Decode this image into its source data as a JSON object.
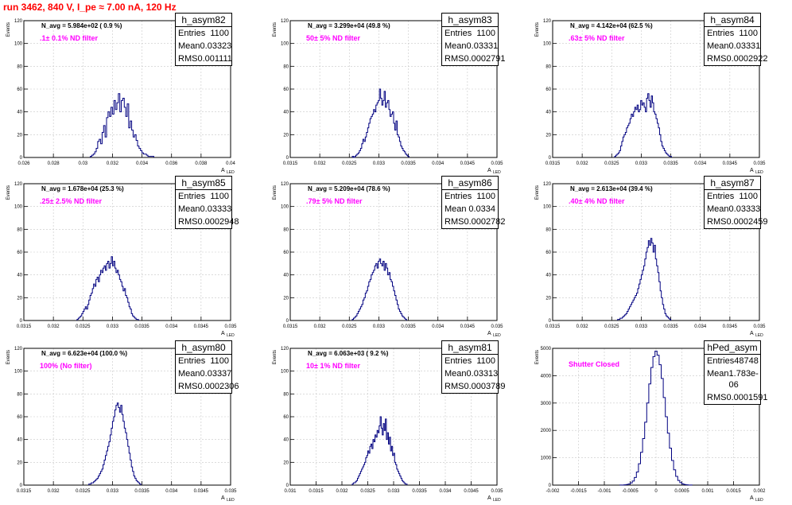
{
  "title": "run 3462,   840 V, I_pe ≈ 7.00 nA, 120 Hz",
  "colors": {
    "line": "#000080",
    "title": "#ff0000",
    "filter_text": "#ff00ff",
    "grid": "#c8c8c8"
  },
  "common": {
    "ylabel": "Events",
    "xlabel": "A",
    "xlabel_sub": "LED"
  },
  "chart_data": [
    {
      "type": "histogram",
      "name": "h_asym82",
      "stats": {
        "entries": "1100",
        "mean": "0.03323",
        "rms": "0.001111"
      },
      "n_avg_label": "N_avg = 5.984e+02 ( 0.9 %)",
      "filter_label": ".1± 0.1% ND filter",
      "xlim": [
        0.026,
        0.04
      ],
      "ylim": [
        0,
        120
      ],
      "xticks": [
        0.026,
        0.028,
        0.03,
        0.032,
        0.034,
        0.036,
        0.038,
        0.04
      ],
      "xtick_labels": [
        "0.026",
        "0.028",
        "0.03",
        "0.032",
        "0.034",
        "0.036",
        "0.038",
        "0.04"
      ],
      "yticks": [
        0,
        20,
        40,
        60,
        80,
        100,
        120
      ],
      "ytick_labels": [
        "0",
        "20",
        "40",
        "60",
        "80",
        "100",
        "120"
      ],
      "bins": {
        "start": 0.0305,
        "width": 0.0001,
        "counts": [
          1,
          2,
          3,
          5,
          8,
          14,
          16,
          12,
          22,
          28,
          18,
          35,
          40,
          36,
          44,
          38,
          50,
          42,
          48,
          56,
          40,
          50,
          52,
          44,
          36,
          47,
          26,
          32,
          24,
          18,
          20,
          15,
          10,
          8,
          6,
          4,
          3,
          3,
          2,
          1,
          1,
          1,
          1
        ]
      }
    },
    {
      "type": "histogram",
      "name": "h_asym83",
      "stats": {
        "entries": "1100",
        "mean": "0.03331",
        "rms": "0.0002791"
      },
      "n_avg_label": "N_avg = 3.299e+04 (49.8 %)",
      "filter_label": "50± 5% ND filter",
      "xlim": [
        0.0315,
        0.035
      ],
      "ylim": [
        0,
        120
      ],
      "xticks": [
        0.0315,
        0.032,
        0.0325,
        0.033,
        0.0335,
        0.034,
        0.0345,
        0.035
      ],
      "xtick_labels": [
        "0.0315",
        "0.032",
        "0.0325",
        "0.033",
        "0.0335",
        "0.034",
        "0.0345",
        "0.035"
      ],
      "yticks": [
        0,
        20,
        40,
        60,
        80,
        100,
        120
      ],
      "ytick_labels": [
        "0",
        "20",
        "40",
        "60",
        "80",
        "100",
        "120"
      ],
      "bins": {
        "start": 0.03255,
        "width": 2e-05,
        "counts": [
          1,
          0,
          1,
          2,
          3,
          4,
          6,
          8,
          12,
          16,
          14,
          18,
          22,
          26,
          30,
          34,
          36,
          38,
          42,
          40,
          46,
          48,
          50,
          60,
          52,
          46,
          50,
          58,
          44,
          48,
          50,
          42,
          36,
          38,
          40,
          30,
          24,
          32,
          20,
          18,
          14,
          10,
          8,
          6,
          5,
          3,
          2,
          1
        ]
      }
    },
    {
      "type": "histogram",
      "name": "h_asym84",
      "stats": {
        "entries": "1100",
        "mean": "0.03331",
        "rms": "0.0002922"
      },
      "n_avg_label": "N_avg = 4.142e+04 (62.5 %)",
      "filter_label": ".63± 5% ND filter",
      "xlim": [
        0.0315,
        0.035
      ],
      "ylim": [
        0,
        120
      ],
      "xticks": [
        0.0315,
        0.032,
        0.0325,
        0.033,
        0.0335,
        0.034,
        0.0345,
        0.035
      ],
      "xtick_labels": [
        "0.0315",
        "0.032",
        "0.0325",
        "0.033",
        "0.0335",
        "0.034",
        "0.0345",
        "0.035"
      ],
      "yticks": [
        0,
        20,
        40,
        60,
        80,
        100,
        120
      ],
      "ytick_labels": [
        "0",
        "20",
        "40",
        "60",
        "80",
        "100",
        "120"
      ],
      "bins": {
        "start": 0.03255,
        "width": 2e-05,
        "counts": [
          1,
          2,
          3,
          4,
          6,
          10,
          14,
          18,
          20,
          22,
          26,
          28,
          30,
          34,
          38,
          36,
          40,
          44,
          42,
          46,
          40,
          42,
          50,
          46,
          48,
          44,
          40,
          52,
          56,
          50,
          44,
          54,
          48,
          40,
          38,
          34,
          30,
          26,
          20,
          14,
          10,
          8,
          6,
          4,
          3,
          2,
          1,
          1
        ]
      }
    },
    {
      "type": "histogram",
      "name": "h_asym85",
      "stats": {
        "entries": "1100",
        "mean": "0.03333",
        "rms": "0.0002948"
      },
      "n_avg_label": "N_avg = 1.678e+04 (25.3 %)",
      "filter_label": ".25± 2.5% ND filter",
      "xlim": [
        0.0315,
        0.035
      ],
      "ylim": [
        0,
        120
      ],
      "xticks": [
        0.0315,
        0.032,
        0.0325,
        0.033,
        0.0335,
        0.034,
        0.0345,
        0.035
      ],
      "xtick_labels": [
        "0.0315",
        "0.032",
        "0.0325",
        "0.033",
        "0.0335",
        "0.034",
        "0.0345",
        "0.035"
      ],
      "yticks": [
        0,
        20,
        40,
        60,
        80,
        100,
        120
      ],
      "ytick_labels": [
        "0",
        "20",
        "40",
        "60",
        "80",
        "100",
        "120"
      ],
      "bins": {
        "start": 0.0324,
        "width": 2e-05,
        "counts": [
          1,
          2,
          3,
          4,
          6,
          8,
          10,
          12,
          10,
          14,
          18,
          22,
          24,
          28,
          32,
          30,
          36,
          38,
          34,
          40,
          44,
          42,
          46,
          48,
          44,
          50,
          52,
          46,
          50,
          56,
          48,
          52,
          46,
          42,
          44,
          40,
          36,
          34,
          30,
          26,
          28,
          22,
          20,
          16,
          12,
          10,
          6,
          4,
          3,
          2,
          1,
          1
        ]
      }
    },
    {
      "type": "histogram",
      "name": "h_asym86",
      "stats": {
        "entries": "1100",
        "mean": "0.0334",
        "rms": "0.0002782"
      },
      "n_avg_label": "N_avg = 5.209e+04 (78.6 %)",
      "filter_label": ".79± 5% ND filter",
      "xlim": [
        0.0315,
        0.035
      ],
      "ylim": [
        0,
        120
      ],
      "xticks": [
        0.0315,
        0.032,
        0.0325,
        0.033,
        0.0335,
        0.034,
        0.0345,
        0.035
      ],
      "xtick_labels": [
        "0.0315",
        "0.032",
        "0.0325",
        "0.033",
        "0.0335",
        "0.034",
        "0.0345",
        "0.035"
      ],
      "yticks": [
        0,
        20,
        40,
        60,
        80,
        100,
        120
      ],
      "ytick_labels": [
        "0",
        "20",
        "40",
        "60",
        "80",
        "100",
        "120"
      ],
      "bins": {
        "start": 0.03255,
        "width": 2e-05,
        "counts": [
          1,
          2,
          3,
          4,
          6,
          8,
          10,
          12,
          14,
          18,
          20,
          24,
          26,
          30,
          34,
          36,
          40,
          42,
          44,
          48,
          50,
          46,
          52,
          54,
          50,
          48,
          52,
          44,
          50,
          46,
          40,
          42,
          36,
          34,
          30,
          26,
          22,
          18,
          14,
          10,
          8,
          6,
          4,
          3,
          2,
          1
        ]
      }
    },
    {
      "type": "histogram",
      "name": "h_asym87",
      "stats": {
        "entries": "1100",
        "mean": "0.03333",
        "rms": "0.0002459"
      },
      "n_avg_label": "N_avg = 2.613e+04 (39.4 %)",
      "filter_label": ".40± 4% ND filter",
      "xlim": [
        0.0315,
        0.035
      ],
      "ylim": [
        0,
        120
      ],
      "xticks": [
        0.0315,
        0.032,
        0.0325,
        0.033,
        0.0335,
        0.034,
        0.0345,
        0.035
      ],
      "xtick_labels": [
        "0.0315",
        "0.032",
        "0.0325",
        "0.033",
        "0.0335",
        "0.034",
        "0.0345",
        "0.035"
      ],
      "yticks": [
        0,
        20,
        40,
        60,
        80,
        100,
        120
      ],
      "ytick_labels": [
        "0",
        "20",
        "40",
        "60",
        "80",
        "100",
        "120"
      ],
      "bins": {
        "start": 0.0326,
        "width": 2e-05,
        "counts": [
          1,
          1,
          2,
          2,
          3,
          4,
          5,
          6,
          8,
          10,
          12,
          14,
          16,
          18,
          20,
          22,
          24,
          28,
          32,
          36,
          40,
          44,
          48,
          54,
          60,
          64,
          70,
          66,
          72,
          68,
          60,
          66,
          54,
          48,
          42,
          34,
          26,
          20,
          14,
          10,
          6,
          4,
          3,
          2,
          1
        ]
      }
    },
    {
      "type": "histogram",
      "name": "h_asym80",
      "stats": {
        "entries": "1100",
        "mean": "0.03337",
        "rms": "0.0002306"
      },
      "n_avg_label": "N_avg = 6.623e+04 (100.0 %)",
      "filter_label": "100% (No filter)",
      "xlim": [
        0.0315,
        0.035
      ],
      "ylim": [
        0,
        120
      ],
      "xticks": [
        0.0315,
        0.032,
        0.0325,
        0.033,
        0.0335,
        0.034,
        0.0345,
        0.035
      ],
      "xtick_labels": [
        "0.0315",
        "0.032",
        "0.0325",
        "0.033",
        "0.0335",
        "0.034",
        "0.0345",
        "0.035"
      ],
      "yticks": [
        0,
        20,
        40,
        60,
        80,
        100,
        120
      ],
      "ytick_labels": [
        "0",
        "20",
        "40",
        "60",
        "80",
        "100",
        "120"
      ],
      "bins": {
        "start": 0.0326,
        "width": 2e-05,
        "counts": [
          1,
          1,
          2,
          2,
          3,
          4,
          5,
          6,
          8,
          10,
          12,
          14,
          18,
          22,
          26,
          30,
          34,
          38,
          44,
          50,
          56,
          60,
          66,
          70,
          72,
          68,
          64,
          70,
          62,
          56,
          50,
          46,
          40,
          34,
          28,
          22,
          16,
          12,
          8,
          6,
          4,
          3,
          2,
          1
        ]
      }
    },
    {
      "type": "histogram",
      "name": "h_asym81",
      "stats": {
        "entries": "1100",
        "mean": "0.03313",
        "rms": "0.0003789"
      },
      "n_avg_label": "N_avg = 6.063e+03 ( 9.2 %)",
      "filter_label": "10± 1% ND filter",
      "xlim": [
        0.031,
        0.035
      ],
      "ylim": [
        0,
        120
      ],
      "xticks": [
        0.031,
        0.0315,
        0.032,
        0.0325,
        0.033,
        0.0335,
        0.034,
        0.0345,
        0.035
      ],
      "xtick_labels": [
        "0.031",
        "0.0315",
        "0.032",
        "0.0325",
        "0.033",
        "0.0335",
        "0.034",
        "0.0345",
        "0.035"
      ],
      "yticks": [
        0,
        20,
        40,
        60,
        80,
        100,
        120
      ],
      "ytick_labels": [
        "0",
        "20",
        "40",
        "60",
        "80",
        "100",
        "120"
      ],
      "bins": {
        "start": 0.0322,
        "width": 2e-05,
        "counts": [
          1,
          2,
          2,
          3,
          4,
          6,
          8,
          10,
          12,
          14,
          16,
          18,
          20,
          24,
          26,
          30,
          28,
          34,
          36,
          32,
          40,
          38,
          44,
          42,
          48,
          46,
          52,
          60,
          50,
          44,
          54,
          48,
          58,
          40,
          46,
          36,
          42,
          30,
          34,
          26,
          28,
          20,
          18,
          14,
          12,
          10,
          8,
          6,
          4,
          3,
          2,
          1,
          1
        ]
      }
    },
    {
      "type": "histogram",
      "name": "hPed_asym",
      "stats": {
        "entries": "48748",
        "mean": "1.783e-06",
        "rms": "0.0001591"
      },
      "n_avg_label": "",
      "filter_label": "Shutter Closed",
      "xlim": [
        -0.002,
        0.002
      ],
      "ylim": [
        0,
        5000
      ],
      "xticks": [
        -0.002,
        -0.0015,
        -0.001,
        -0.0005,
        0,
        0.0005,
        0.001,
        0.0015,
        0.002
      ],
      "xtick_labels": [
        "-0.002",
        "-0.0015",
        "-0.001",
        "-0.0005",
        "0",
        "0.0005",
        "0.001",
        "0.0015",
        "0.002"
      ],
      "yticks": [
        0,
        1000,
        2000,
        3000,
        4000,
        5000
      ],
      "ytick_labels": [
        "0",
        "1000",
        "2000",
        "3000",
        "4000",
        "5000"
      ],
      "bins": {
        "start": -0.0007,
        "width": 4e-05,
        "counts": [
          2,
          5,
          10,
          20,
          40,
          80,
          150,
          280,
          480,
          780,
          1200,
          1700,
          2300,
          3000,
          3700,
          4300,
          4700,
          4900,
          4750,
          4400,
          3900,
          3200,
          2500,
          1900,
          1350,
          900,
          560,
          320,
          170,
          90,
          45,
          22,
          10,
          5,
          2
        ]
      }
    }
  ]
}
